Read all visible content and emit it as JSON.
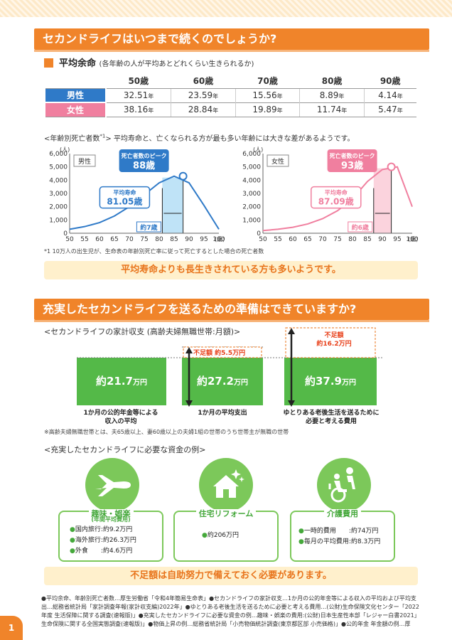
{
  "section1": {
    "title": "セカンドライフはいつまで続くのでしょうか?"
  },
  "life": {
    "title": "平均余命",
    "subtitle": "(各年齢の人が平均あとどれくらい生きられるか)",
    "headers": [
      "50歳",
      "60歳",
      "70歳",
      "80歳",
      "90歳"
    ],
    "unit": "年",
    "rows": [
      {
        "label": "男性",
        "values": [
          "32.51",
          "23.59",
          "15.56",
          "8.89",
          "4.14"
        ],
        "color": "#2f7ac8"
      },
      {
        "label": "女性",
        "values": [
          "38.16",
          "28.84",
          "19.89",
          "11.74",
          "5.47"
        ],
        "color": "#f07f9f"
      }
    ]
  },
  "death_note": {
    "prefix": "<年齢別死亡者数",
    "sup": "*1",
    "suffix": "> 平均寿命と、亡くなられる方が最も多い年齢には大きな差があるようです。"
  },
  "chart_data": [
    {
      "type": "line",
      "label": "男性",
      "color": "#2f7ac8",
      "unit": "(人)",
      "xunit": "(歳)",
      "x": [
        50,
        55,
        60,
        65,
        70,
        75,
        80,
        85,
        90,
        95,
        100
      ],
      "y": [
        300,
        500,
        800,
        1300,
        2000,
        2900,
        3800,
        4300,
        3800,
        2100,
        300
      ],
      "xticks": [
        "50",
        "55",
        "60",
        "65",
        "70",
        "75",
        "80",
        "85",
        "90",
        "95",
        "100"
      ],
      "yticks": [
        "0",
        "1,000",
        "2,000",
        "3,000",
        "4,000",
        "5,000",
        "6,000"
      ],
      "ylim": [
        0,
        6000
      ],
      "peak": {
        "x": 88,
        "y": 4300
      },
      "mean": 81.05,
      "peak_title": "死亡者数のピーク",
      "peak_value": "88歳",
      "mean_title": "平均寿命",
      "mean_value": "81.05歳",
      "gap": "約7歳"
    },
    {
      "type": "line",
      "label": "女性",
      "color": "#f07f9f",
      "unit": "(人)",
      "xunit": "(歳)",
      "x": [
        50,
        55,
        60,
        65,
        70,
        75,
        80,
        85,
        90,
        95,
        100
      ],
      "y": [
        200,
        300,
        450,
        700,
        1100,
        1700,
        2600,
        3900,
        4800,
        5000,
        2000
      ],
      "xticks": [
        "50",
        "55",
        "60",
        "65",
        "70",
        "75",
        "80",
        "85",
        "90",
        "95",
        "100"
      ],
      "yticks": [
        "0",
        "1,000",
        "2,000",
        "3,000",
        "4,000",
        "5,000",
        "6,000"
      ],
      "ylim": [
        0,
        6000
      ],
      "peak": {
        "x": 93,
        "y": 5000
      },
      "mean": 87.09,
      "peak_title": "死亡者数のピーク",
      "peak_value": "93歳",
      "mean_title": "平均寿命",
      "mean_value": "87.09歳",
      "gap": "約6歳"
    }
  ],
  "footnote1": "*1 10万人の出生児が、生命表の年齢別死亡率に従って死亡するとした場合の死亡者数",
  "banner1": "平均寿命よりも長生きされている方も多いようです。",
  "section2": {
    "title": "充実したセカンドライフを送るための準備はできていますか?"
  },
  "budget": {
    "title": "<セカンドライフの家計収支 (高齢夫婦無職世帯:月額)>",
    "boxes": [
      {
        "amount": "約21.7",
        "unit": "万円",
        "label": "1か月の公的年金等による\n収入の平均"
      },
      {
        "amount": "約27.2",
        "unit": "万円",
        "label": "1か月の平均支出"
      },
      {
        "amount": "約37.9",
        "unit": "万円",
        "label": "ゆとりある老後生活を送るために\n必要と考える費用"
      }
    ],
    "short1": "不足額 約5.5万円",
    "short2_title": "不足額",
    "short2_value": "約16.2万円"
  },
  "footnote2": "※高齢夫婦無職世帯とは、夫65歳以上、妻60歳以上の夫婦1組の世帯のうち世帯主が無職の世帯",
  "examples": {
    "title": "<充実したセカンドライフに必要な資金の例>",
    "cards": [
      {
        "icon": "airplane-icon",
        "title": "趣味・娯楽",
        "sub": "(年間平均費用)",
        "items": [
          "国内旅行:約9.2万円",
          "海外旅行:約26.3万円",
          "外食　　:約4.6万円"
        ]
      },
      {
        "icon": "house-icon",
        "title": "住宅リフォーム",
        "sub": "",
        "items": [
          "約206万円"
        ]
      },
      {
        "icon": "wheelchair-icon",
        "title": "介護費用",
        "sub": "",
        "items": [
          "一時的費用　　:約74万円",
          "毎月の平均費用:約8.3万円"
        ]
      }
    ]
  },
  "banner2": "不足額は自助努力で備えておく必要があります。",
  "sources": [
    "●平均余命、年齢別死亡者数…厚生労働省「令和4年簡易生命表」●セカンドライフの家計収支…1か月の公的年金等による収入の平均および平均支",
    "出…総務省統計局「家計調査年報(家計収支編)2022年」●ゆとりある老後生活を送るために必要と考える費用…(公財)生命保険文化センター「2022",
    "年度 生活保障に関する調査(速報版)」●充実したセカンドライフに必要な資金の例…趣味・娯楽の費用:(公財)日本生産性本部「レジャー白書2021」",
    "生命保険に関する全国実態調査(速報版)」●物価上昇の例…総務省統計局「小売物価統計調査(東京都区部 小売価格)」●公的年金 年金額の例…厚"
  ],
  "page": "1"
}
